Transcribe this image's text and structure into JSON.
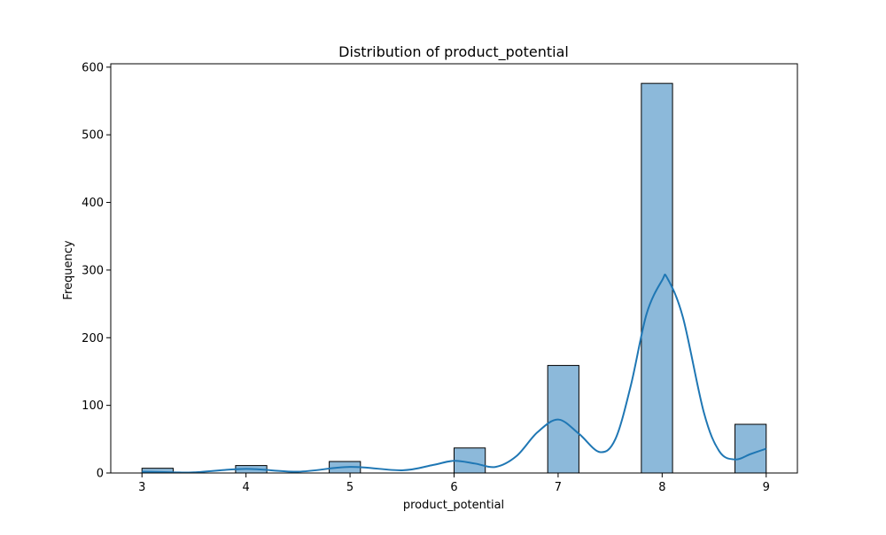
{
  "chart_data": {
    "type": "bar",
    "title": "Distribution of product_potential",
    "xlabel": "product_potential",
    "ylabel": "Frequency",
    "x_ticks": [
      3,
      4,
      5,
      6,
      7,
      8,
      9
    ],
    "y_ticks": [
      0,
      100,
      200,
      300,
      400,
      500,
      600
    ],
    "xlim": [
      2.7,
      9.3
    ],
    "ylim": [
      0,
      605
    ],
    "grid": false,
    "bins": [
      {
        "start": 3.0,
        "end": 3.3,
        "count": 7
      },
      {
        "start": 3.3,
        "end": 3.6,
        "count": 0
      },
      {
        "start": 3.6,
        "end": 3.9,
        "count": 0
      },
      {
        "start": 3.9,
        "end": 4.2,
        "count": 11
      },
      {
        "start": 4.2,
        "end": 4.5,
        "count": 0
      },
      {
        "start": 4.5,
        "end": 4.8,
        "count": 0
      },
      {
        "start": 4.8,
        "end": 5.1,
        "count": 17
      },
      {
        "start": 5.1,
        "end": 5.4,
        "count": 0
      },
      {
        "start": 5.4,
        "end": 5.7,
        "count": 0
      },
      {
        "start": 5.7,
        "end": 6.0,
        "count": 0
      },
      {
        "start": 6.0,
        "end": 6.3,
        "count": 37
      },
      {
        "start": 6.3,
        "end": 6.6,
        "count": 0
      },
      {
        "start": 6.6,
        "end": 6.9,
        "count": 0
      },
      {
        "start": 6.9,
        "end": 7.2,
        "count": 159
      },
      {
        "start": 7.2,
        "end": 7.5,
        "count": 0
      },
      {
        "start": 7.5,
        "end": 7.8,
        "count": 0
      },
      {
        "start": 7.8,
        "end": 8.1,
        "count": 576
      },
      {
        "start": 8.1,
        "end": 8.4,
        "count": 0
      },
      {
        "start": 8.4,
        "end": 8.7,
        "count": 0
      },
      {
        "start": 8.7,
        "end": 9.0,
        "count": 72
      }
    ],
    "kde": {
      "x": [
        3.0,
        3.3,
        3.5,
        4.0,
        4.5,
        5.0,
        5.5,
        5.8,
        6.0,
        6.2,
        6.4,
        6.6,
        6.8,
        7.0,
        7.2,
        7.4,
        7.55,
        7.7,
        7.85,
        8.0,
        8.05,
        8.2,
        8.4,
        8.55,
        8.7,
        8.85,
        9.0
      ],
      "y": [
        2,
        1,
        1,
        6,
        2,
        9,
        4,
        12,
        18,
        14,
        9,
        25,
        60,
        79,
        58,
        31,
        50,
        130,
        235,
        285,
        288,
        230,
        90,
        32,
        20,
        28,
        36
      ]
    },
    "colors": {
      "bar_fill": "#8cb9da",
      "bar_edge": "#000000",
      "kde_line": "#1f77b4",
      "axes": "#000000"
    }
  }
}
